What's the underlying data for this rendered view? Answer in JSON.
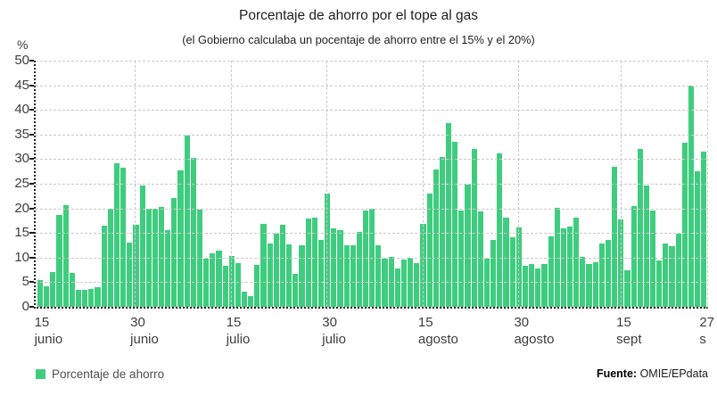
{
  "title": "Porcentaje de ahorro por el tope al gas",
  "subtitle": "(el Gobierno calculaba un pocentaje de ahorro entre el 15% y el 20%)",
  "y_axis": {
    "unit_label": "%",
    "ticks": [
      0,
      5,
      10,
      15,
      20,
      25,
      30,
      35,
      40,
      45,
      50
    ]
  },
  "x_axis": {
    "ticks": [
      {
        "day": 1,
        "line1": "15",
        "line2": "junio"
      },
      {
        "day": 16,
        "line1": "30",
        "line2": "junio"
      },
      {
        "day": 31,
        "line1": "15",
        "line2": "julio"
      },
      {
        "day": 46,
        "line1": "30",
        "line2": "julio"
      },
      {
        "day": 61,
        "line1": "15",
        "line2": "agosto"
      },
      {
        "day": 76,
        "line1": "30",
        "line2": "agosto"
      },
      {
        "day": 92,
        "line1": "15",
        "line2": "sept"
      },
      {
        "day": 105,
        "line1": "27",
        "line2": "s"
      }
    ]
  },
  "legend": {
    "label": "Porcentaje de ahorro"
  },
  "source": {
    "prefix": "Fuente:",
    "text": " OMIE/EPdata"
  },
  "chart_data": {
    "type": "bar",
    "title": "Porcentaje de ahorro por el tope al gas",
    "xlabel": "",
    "ylabel": "%",
    "ylim": [
      0,
      50
    ],
    "grid": true,
    "legend_position": "bottom-left",
    "bar_color": "#3ecd7e",
    "x_start": "15 junio 2022",
    "x_end": "27 septiembre 2022",
    "n_days": 105,
    "x_gridline_days": [
      16,
      31,
      46,
      61,
      76,
      92
    ],
    "values": [
      5.4,
      4.2,
      7.0,
      18.7,
      20.6,
      6.8,
      3.5,
      3.5,
      3.6,
      4.0,
      16.5,
      20.0,
      29.1,
      28.2,
      13.0,
      16.6,
      24.6,
      19.9,
      19.9,
      20.3,
      15.6,
      22.1,
      27.7,
      34.8,
      30.2,
      19.8,
      9.8,
      10.8,
      11.4,
      8.3,
      10.3,
      8.8,
      3.1,
      2.2,
      8.5,
      16.8,
      12.8,
      14.8,
      16.7,
      12.6,
      6.7,
      12.5,
      17.9,
      18.1,
      13.5,
      23.0,
      15.9,
      15.5,
      12.5,
      12.5,
      15.3,
      19.6,
      19.9,
      12.5,
      9.8,
      10.2,
      7.8,
      9.6,
      9.9,
      8.8,
      16.8,
      23.0,
      27.9,
      30.5,
      37.3,
      33.5,
      19.6,
      24.8,
      32.1,
      19.4,
      9.8,
      13.6,
      31.2,
      18.1,
      14.1,
      16.2,
      8.4,
      8.7,
      7.8,
      8.7,
      14.4,
      20.2,
      15.9,
      16.3,
      18.1,
      10.1,
      8.7,
      9.0,
      12.8,
      13.6,
      28.5,
      17.8,
      7.5,
      20.4,
      32.0,
      24.6,
      19.5,
      9.5,
      12.9,
      12.4,
      14.9,
      33.4,
      45.0,
      27.6,
      31.5
    ]
  }
}
